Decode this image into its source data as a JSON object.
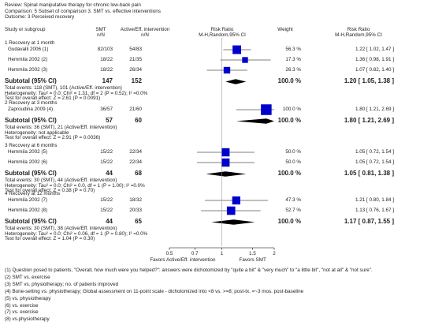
{
  "header": {
    "review": "Review:  Spinal manipulative therapy for chronic low-back pain",
    "comparison": "Comparison:  5 Subset of comparison 3. SMT vs. effective interventions",
    "outcome": "Outcome:  3 Perceived recovery"
  },
  "columns": {
    "study": "Study or subgroup",
    "smt": "SMT",
    "smt_n": "n/N",
    "ctrl": "Active/Eff. intervention",
    "ctrl_n": "n/N",
    "rr_plot": "Risk Ratio",
    "rr_plot_method": "M-H,Random,95% CI",
    "weight": "Weight",
    "rr_text": "Risk Ratio",
    "rr_text_method": "M-H,Random,95% CI"
  },
  "chart_data": {
    "type": "forest",
    "scale": "log",
    "xlim": [
      0.5,
      2
    ],
    "ticks": [
      "0.5",
      "0.7",
      "1",
      "1.5",
      "2"
    ],
    "tick_values": [
      0.5,
      0.7,
      1,
      1.5,
      2
    ],
    "xlabel_left": "Favors Active/Eff. intervention",
    "xlabel_right": "Favors SMT",
    "groups": [
      {
        "title": "1 Recovery at 1 month",
        "studies": [
          {
            "name": "Gudavalli 2006 (1)",
            "smt": "82/103",
            "ctrl": "54/83",
            "weight": "56.3 %",
            "ci_text": "1.22 [ 1.02, 1.47 ]",
            "rr": 1.22,
            "lo": 1.02,
            "hi": 1.47,
            "w": 56.3
          },
          {
            "name": "Hemmila 2002 (2)",
            "smt": "18/22",
            "ctrl": "21/35",
            "weight": "17.3 %",
            "ci_text": "1.36 [ 0.98, 1.91 ]",
            "rr": 1.36,
            "lo": 0.98,
            "hi": 1.91,
            "w": 17.3
          },
          {
            "name": "Hemmila 2002 (3)",
            "smt": "18/22",
            "ctrl": "26/34",
            "weight": "26.3 %",
            "ci_text": "1.07 [ 0.82, 1.40 ]",
            "rr": 1.07,
            "lo": 0.82,
            "hi": 1.4,
            "w": 26.3
          }
        ],
        "subtotal": {
          "label": "Subtotal (95% CI)",
          "smt_n": "147",
          "ctrl_n": "152",
          "weight": "100.0 %",
          "ci_text": "1.20 [ 1.05, 1.38 ]",
          "rr": 1.2,
          "lo": 1.05,
          "hi": 1.38
        },
        "notes": [
          "Total events: 118 (SMT), 101 (Active/Eff. intervention)",
          "Heterogeneity: Tau² = 0.0; Chi² = 1.31, df = 2 (P = 0.52); I² =0.0%",
          "Test for overall effect: Z = 2.61 (P = 0.0091)"
        ]
      },
      {
        "title": "2 Recovery at 3 months",
        "studies": [
          {
            "name": "Zaproudina 2009 (4)",
            "smt": "36/57",
            "ctrl": "21/60",
            "weight": "100.0 %",
            "ci_text": "1.80 [ 1.21, 2.69 ]",
            "rr": 1.8,
            "lo": 1.21,
            "hi": 2.69,
            "w": 100
          }
        ],
        "subtotal": {
          "label": "Subtotal (95% CI)",
          "smt_n": "57",
          "ctrl_n": "60",
          "weight": "100.0 %",
          "ci_text": "1.80 [ 1.21, 2.69 ]",
          "rr": 1.8,
          "lo": 1.21,
          "hi": 2.69
        },
        "notes": [
          "Total events: 36 (SMT), 21 (Active/Eff. intervention)",
          "Heterogeneity: not applicable",
          "Test for overall effect: Z = 2.91 (P = 0.0036)"
        ]
      },
      {
        "title": "3 Recovery at 6 months",
        "studies": [
          {
            "name": "Hemmila 2002 (5)",
            "smt": "15/22",
            "ctrl": "22/34",
            "weight": "50.0 %",
            "ci_text": "1.05 [ 0.72, 1.54 ]",
            "rr": 1.05,
            "lo": 0.72,
            "hi": 1.54,
            "w": 50
          },
          {
            "name": "Hemmila 2002 (6)",
            "smt": "15/22",
            "ctrl": "22/34",
            "weight": "50.0 %",
            "ci_text": "1.05 [ 0.72, 1.54 ]",
            "rr": 1.05,
            "lo": 0.72,
            "hi": 1.54,
            "w": 50
          }
        ],
        "subtotal": {
          "label": "Subtotal (95% CI)",
          "smt_n": "44",
          "ctrl_n": "68",
          "weight": "100.0 %",
          "ci_text": "1.05 [ 0.81, 1.38 ]",
          "rr": 1.05,
          "lo": 0.81,
          "hi": 1.38
        },
        "notes": [
          "Total events: 30 (SMT), 44 (Active/Eff. intervention)",
          "Heterogeneity: Tau² = 0.0; Chi² = 0.0, df = 1 (P = 1.00); I² =0.0%",
          "Test for overall effect: Z = 0.38 (P = 0.70)"
        ]
      },
      {
        "title": "4 Recovery at 12 months",
        "studies": [
          {
            "name": "Hemmila 2002 (7)",
            "smt": "15/22",
            "ctrl": "18/32",
            "weight": "47.3 %",
            "ci_text": "1.21 [ 0.80, 1.84 ]",
            "rr": 1.21,
            "lo": 0.8,
            "hi": 1.84,
            "w": 47.3
          },
          {
            "name": "Hemmila 2002 (8)",
            "smt": "15/22",
            "ctrl": "20/33",
            "weight": "52.7 %",
            "ci_text": "1.13 [ 0.76, 1.67 ]",
            "rr": 1.13,
            "lo": 0.76,
            "hi": 1.67,
            "w": 52.7
          }
        ],
        "subtotal": {
          "label": "Subtotal (95% CI)",
          "smt_n": "44",
          "ctrl_n": "65",
          "weight": "100.0 %",
          "ci_text": "1.17 [ 0.87, 1.55 ]",
          "rr": 1.17,
          "lo": 0.87,
          "hi": 1.55
        },
        "notes": [
          "Total events: 30 (SMT), 38 (Active/Eff. intervention)",
          "Heterogeneity: Tau² = 0.0; Chi² = 0.06, df = 1 (P = 0.80); I² =0.0%",
          "Test for overall effect: Z = 1.04 (P = 0.30)"
        ]
      }
    ]
  },
  "footnotes": [
    "(1) Question posed to patients, \"Overall, how much were you helped?\": answers were dichotomized by \"quite a bit\" & \"very much\" to \"a little bit\", \"not at all\" & \"not sure\".",
    "(2) SMT vs. exercise",
    "(3) SMT vs. physiotherapy; no. of patients improved",
    "(4) Bone-setting vs. physiotherapy; Global assessment on 11-point scale - dichotomized into <8 vs. >=8; post-tx. =~3 mos. post-baseline",
    "(5) vs. physiotherapy",
    "(6) vs. exercise",
    "(7) vs. exercise",
    "(8) vs.physiotherapy"
  ],
  "colors": {
    "marker": "#0000cc",
    "diamond": "#000000",
    "line": "#000000"
  }
}
